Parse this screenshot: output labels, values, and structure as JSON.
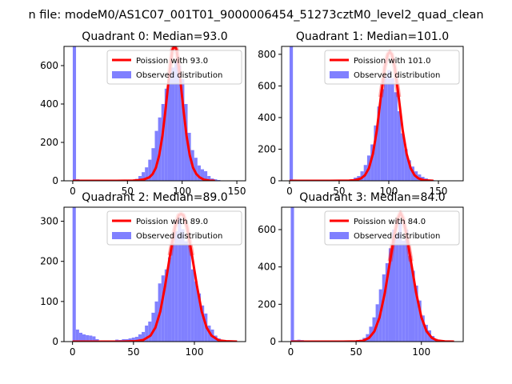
{
  "figure": {
    "suptitle": "n file: modeM0/AS1C07_001T01_9000006454_51273cztM0_level2_quad_clean"
  },
  "colors": {
    "observed": "#8080ff",
    "poisson": "#ff0000"
  },
  "chart_data": [
    {
      "type": "bar",
      "title": "Quadrant 0: Median=93.0",
      "xlim": [
        -8,
        158
      ],
      "ylim": [
        0,
        700
      ],
      "xticks": [
        0,
        50,
        100,
        150
      ],
      "yticks": [
        0,
        200,
        400,
        600
      ],
      "bin_width": 3,
      "series": [
        {
          "name": "Poission with 93.0",
          "kind": "line",
          "mean": 93.0,
          "peak": 705,
          "x": [
            0,
            20,
            40,
            55,
            60,
            65,
            70,
            73,
            76,
            79,
            82,
            85,
            88,
            91,
            93,
            95,
            98,
            101,
            104,
            107,
            110,
            113,
            116,
            120,
            125,
            130
          ],
          "y": [
            0,
            0,
            0,
            1,
            3,
            7,
            18,
            35,
            68,
            132,
            235,
            380,
            545,
            680,
            705,
            680,
            545,
            380,
            235,
            132,
            68,
            35,
            18,
            6,
            1,
            0
          ]
        },
        {
          "name": "Observed distribution",
          "kind": "histogram",
          "x": [
            0,
            3,
            6,
            9,
            12,
            15,
            18,
            21,
            24,
            27,
            30,
            33,
            36,
            39,
            42,
            45,
            48,
            51,
            54,
            57,
            60,
            63,
            66,
            69,
            72,
            75,
            78,
            81,
            84,
            87,
            90,
            93,
            96,
            99,
            102,
            105,
            108,
            111,
            114,
            117,
            120,
            123,
            126,
            129,
            132,
            135,
            138,
            141,
            144
          ],
          "y": [
            700,
            8,
            5,
            5,
            5,
            5,
            5,
            5,
            5,
            5,
            5,
            5,
            5,
            5,
            5,
            5,
            5,
            5,
            5,
            10,
            25,
            45,
            70,
            110,
            170,
            260,
            330,
            400,
            480,
            560,
            590,
            620,
            600,
            530,
            400,
            250,
            160,
            120,
            80,
            60,
            50,
            25,
            12,
            8,
            4,
            2,
            1,
            1,
            1
          ]
        }
      ],
      "legend_placement": "upper right"
    },
    {
      "type": "bar",
      "title": "Quadrant 1: Median=101.0",
      "xlim": [
        -8,
        175
      ],
      "ylim": [
        0,
        850
      ],
      "xticks": [
        0,
        50,
        100,
        150
      ],
      "yticks": [
        0,
        200,
        400,
        600,
        800
      ],
      "bin_width": 3.4,
      "series": [
        {
          "name": "Poission with 101.0",
          "kind": "line",
          "mean": 101.0,
          "peak": 815,
          "x": [
            0,
            20,
            40,
            60,
            66,
            72,
            76,
            80,
            84,
            88,
            92,
            96,
            99,
            101,
            103,
            106,
            110,
            114,
            118,
            122,
            126,
            130,
            136,
            145
          ],
          "y": [
            0,
            0,
            0,
            1,
            4,
            15,
            35,
            80,
            170,
            320,
            530,
            720,
            800,
            815,
            800,
            720,
            530,
            320,
            170,
            80,
            35,
            15,
            3,
            0
          ]
        },
        {
          "name": "Observed distribution",
          "kind": "histogram",
          "x": [
            0,
            3.4,
            6.8,
            10.2,
            13.6,
            17,
            20.4,
            23.8,
            27.2,
            30.6,
            34,
            37.4,
            40.8,
            44.2,
            47.6,
            51,
            54.4,
            57.8,
            61.2,
            64.6,
            68,
            71.4,
            74.8,
            78.2,
            81.6,
            85,
            88.4,
            91.8,
            95.2,
            98.6,
            102,
            105.4,
            108.8,
            112.2,
            115.6,
            119,
            122.4,
            125.8,
            129.2,
            132.6,
            136,
            139.4,
            142.8,
            146.2,
            149.6,
            153,
            156.4,
            159.8
          ],
          "y": [
            850,
            8,
            5,
            5,
            5,
            5,
            5,
            5,
            5,
            5,
            5,
            5,
            5,
            5,
            5,
            5,
            5,
            5,
            10,
            20,
            30,
            60,
            100,
            160,
            230,
            350,
            470,
            580,
            660,
            700,
            650,
            560,
            440,
            300,
            200,
            130,
            90,
            60,
            40,
            25,
            15,
            8,
            4,
            2,
            1,
            1,
            1,
            1
          ]
        }
      ],
      "legend_placement": "upper right"
    },
    {
      "type": "bar",
      "title": "Quadrant 2: Median=89.0",
      "xlim": [
        -7,
        142
      ],
      "ylim": [
        0,
        335
      ],
      "xticks": [
        0,
        50,
        100
      ],
      "yticks": [
        0,
        100,
        200,
        300
      ],
      "bin_width": 2.7,
      "series": [
        {
          "name": "Poission with 89.0",
          "kind": "line",
          "mean": 89.0,
          "peak": 318,
          "x": [
            0,
            20,
            40,
            52,
            58,
            64,
            68,
            72,
            76,
            80,
            84,
            87,
            89,
            91,
            94,
            98,
            102,
            106,
            110,
            114,
            120,
            126,
            135
          ],
          "y": [
            0,
            0,
            0,
            1,
            4,
            15,
            35,
            75,
            140,
            215,
            285,
            315,
            318,
            315,
            285,
            215,
            140,
            75,
            35,
            15,
            3,
            1,
            0
          ]
        },
        {
          "name": "Observed distribution",
          "kind": "histogram",
          "x": [
            0,
            2.7,
            5.4,
            8.1,
            10.8,
            13.5,
            16.2,
            18.9,
            21.6,
            24.3,
            27,
            29.7,
            32.4,
            35.1,
            37.8,
            40.5,
            43.2,
            45.9,
            48.6,
            51.3,
            54,
            56.7,
            59.4,
            62.1,
            64.8,
            67.5,
            70.2,
            72.9,
            75.6,
            78.3,
            81,
            83.7,
            86.4,
            89.1,
            91.8,
            94.5,
            97.2,
            99.9,
            102.6,
            105.3,
            108,
            110.7,
            113.4,
            116.1,
            118.8,
            121.5
          ],
          "y": [
            335,
            30,
            22,
            18,
            16,
            15,
            13,
            6,
            3,
            3,
            3,
            2,
            2,
            5,
            4,
            6,
            6,
            8,
            10,
            12,
            18,
            24,
            40,
            50,
            72,
            100,
            145,
            165,
            180,
            210,
            245,
            275,
            310,
            280,
            250,
            240,
            180,
            150,
            120,
            90,
            70,
            40,
            30,
            15,
            8,
            4
          ]
        }
      ],
      "legend_placement": "upper right"
    },
    {
      "type": "bar",
      "title": "Quadrant 3: Median=84.0",
      "xlim": [
        -7,
        132
      ],
      "ylim": [
        0,
        720
      ],
      "xticks": [
        0,
        50,
        100
      ],
      "yticks": [
        0,
        200,
        400,
        600
      ],
      "bin_width": 2.5,
      "series": [
        {
          "name": "Poission with 84.0",
          "kind": "line",
          "mean": 84.0,
          "peak": 690,
          "x": [
            0,
            20,
            40,
            50,
            55,
            60,
            64,
            68,
            72,
            76,
            79,
            82,
            84,
            86,
            89,
            92,
            96,
            100,
            104,
            108,
            112,
            118,
            125
          ],
          "y": [
            0,
            0,
            0,
            1,
            4,
            20,
            55,
            130,
            260,
            430,
            560,
            660,
            690,
            660,
            560,
            430,
            260,
            130,
            55,
            20,
            6,
            1,
            0
          ]
        },
        {
          "name": "Observed distribution",
          "kind": "histogram",
          "x": [
            0,
            2.5,
            5,
            7.5,
            10,
            12.5,
            15,
            17.5,
            20,
            22.5,
            25,
            27.5,
            30,
            32.5,
            35,
            37.5,
            40,
            42.5,
            45,
            47.5,
            50,
            52.5,
            55,
            57.5,
            60,
            62.5,
            65,
            67.5,
            70,
            72.5,
            75,
            77.5,
            80,
            82.5,
            85,
            87.5,
            90,
            92.5,
            95,
            97.5,
            100,
            102.5,
            105,
            107.5,
            110
          ],
          "y": [
            720,
            8,
            10,
            8,
            5,
            5,
            5,
            5,
            5,
            5,
            5,
            5,
            5,
            5,
            5,
            5,
            5,
            5,
            5,
            5,
            8,
            10,
            20,
            40,
            80,
            130,
            200,
            280,
            360,
            420,
            500,
            600,
            580,
            640,
            540,
            600,
            460,
            380,
            300,
            220,
            140,
            90,
            60,
            30,
            15
          ]
        }
      ],
      "legend_placement": "upper right"
    }
  ]
}
